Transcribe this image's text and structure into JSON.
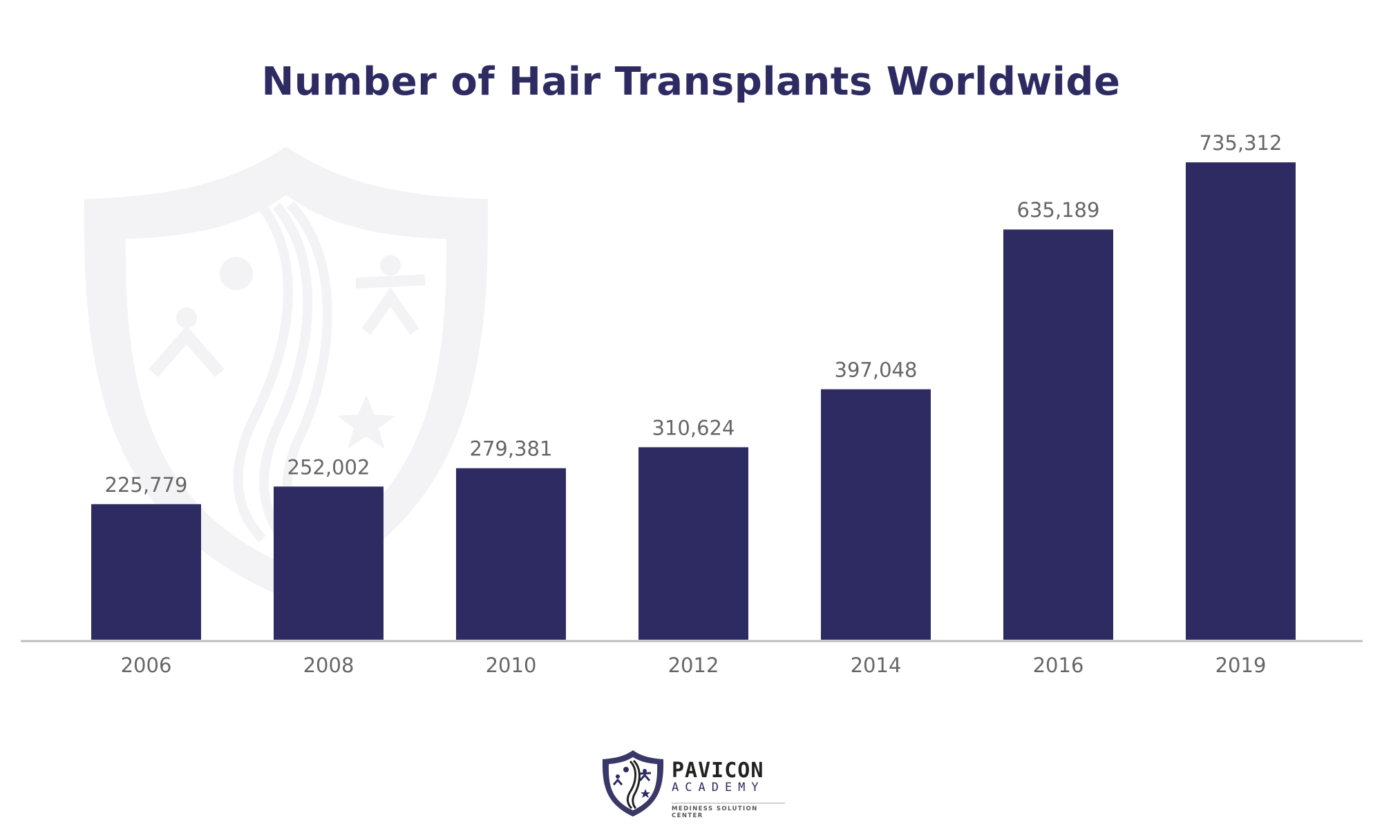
{
  "chart_data": {
    "type": "bar",
    "title": "Number of Hair Transplants Worldwide",
    "categories": [
      "2006",
      "2008",
      "2010",
      "2012",
      "2014",
      "2016",
      "2019"
    ],
    "values": [
      225779,
      252002,
      279381,
      310624,
      397048,
      635189,
      735312
    ],
    "value_labels": [
      "225,779",
      "252,002",
      "279,381",
      "310,624",
      "397,048",
      "635,189",
      "735,312"
    ],
    "xlabel": "",
    "ylabel": "",
    "grid": false,
    "bar_color": "#2d2b62",
    "label_color": "#666666"
  },
  "logo": {
    "name": "PAVICON",
    "line2": "ACADEMY",
    "tagline": "MEDINESS SOLUTION CENTER"
  }
}
